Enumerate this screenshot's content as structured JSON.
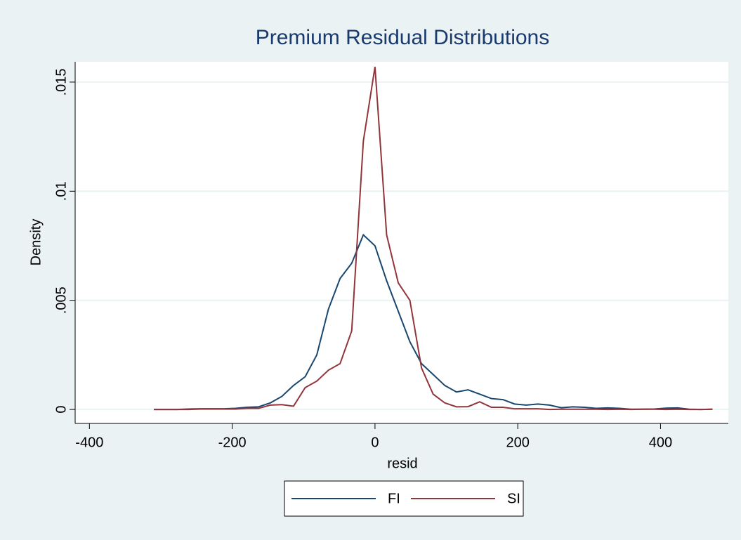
{
  "chart_data": {
    "type": "line",
    "title": "Premium Residual Distributions",
    "x_label": "resid",
    "y_label": "Density",
    "x": [
      -309.7,
      -293.4,
      -277.1,
      -260.8,
      -244.5,
      -228.2,
      -211.9,
      -195.6,
      -179.3,
      -163,
      -146.7,
      -130.4,
      -114.1,
      -97.8,
      -81.5,
      -65.2,
      -48.9,
      -32.6,
      -16.3,
      0,
      16.3,
      32.6,
      48.9,
      65.2,
      81.5,
      97.8,
      114.1,
      130.4,
      146.7,
      163,
      179.3,
      195.6,
      211.9,
      228.2,
      244.5,
      260.8,
      277.1,
      293.4,
      309.7,
      326,
      342.3,
      358.6,
      374.9,
      391.2,
      407.5,
      423.8,
      440.1,
      456.4,
      472.7
    ],
    "series": [
      {
        "name": "FI",
        "color": "#1a476f",
        "values": [
          0,
          0,
          0,
          2e-05,
          3e-05,
          3e-05,
          3e-05,
          5e-05,
          0.0001,
          0.00012,
          0.0003,
          0.0006,
          0.0011,
          0.0015,
          0.0025,
          0.0046,
          0.006,
          0.0067,
          0.008,
          0.0075,
          0.0059,
          0.0045,
          0.0031,
          0.0021,
          0.0016,
          0.0011,
          0.0008,
          0.0009,
          0.0007,
          0.0005,
          0.00045,
          0.00025,
          0.0002,
          0.00025,
          0.0002,
          8e-05,
          0.00012,
          0.0001,
          5e-05,
          7e-05,
          5e-05,
          1e-05,
          1e-05,
          2e-05,
          6e-05,
          7e-05,
          1e-05,
          0,
          1e-05
        ]
      },
      {
        "name": "SI",
        "color": "#90353b",
        "values": [
          0,
          0,
          0,
          0,
          2e-05,
          2e-05,
          2e-05,
          2e-05,
          5e-05,
          5e-05,
          0.0002,
          0.00022,
          0.00015,
          0.001,
          0.0013,
          0.0018,
          0.0021,
          0.0036,
          0.0123,
          0.0157,
          0.008,
          0.0058,
          0.005,
          0.0019,
          0.0007,
          0.0003,
          0.00012,
          0.00013,
          0.00035,
          0.0001,
          0.0001,
          3e-05,
          3e-05,
          3e-05,
          0,
          1e-05,
          1e-05,
          1e-05,
          1e-05,
          0,
          1e-05,
          0,
          1e-05,
          1e-05,
          0,
          1e-05,
          0,
          0,
          1e-05
        ]
      }
    ],
    "xlim": [
      -420,
      495
    ],
    "ylim": [
      -0.00064,
      0.01593
    ],
    "xticks": [
      -400,
      -200,
      0,
      200,
      400
    ],
    "yticks": [
      0,
      {
        "value": 0.005,
        "label": ".005"
      },
      {
        "value": 0.01,
        "label": ".01"
      },
      {
        "value": 0.015,
        "label": ".015"
      }
    ],
    "grid": true
  }
}
